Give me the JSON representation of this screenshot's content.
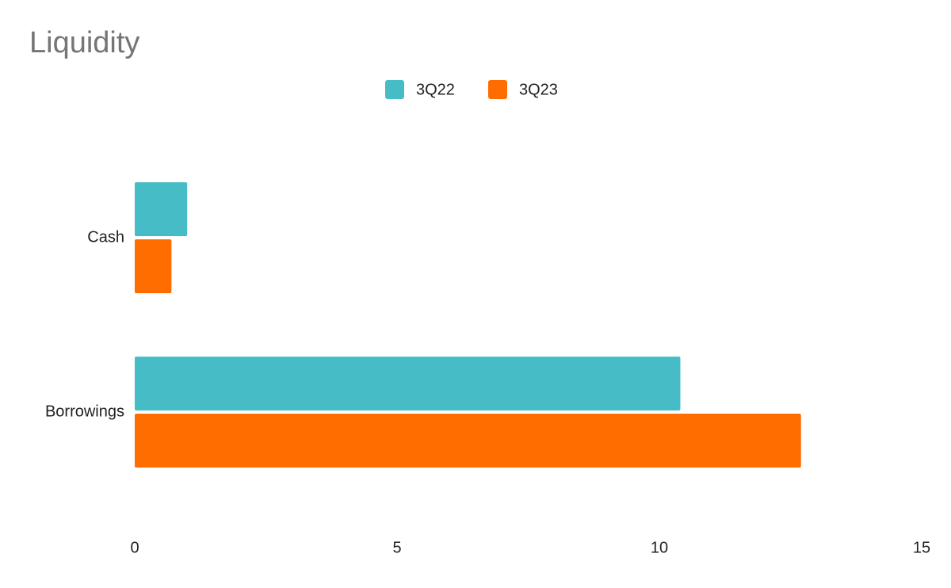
{
  "chart_data": {
    "type": "bar",
    "title": "Liquidity",
    "categories": [
      "Cash",
      "Borrowings"
    ],
    "series": [
      {
        "name": "3Q22",
        "color": "#46bdc6",
        "values": [
          1.0,
          10.4
        ]
      },
      {
        "name": "3Q23",
        "color": "#ff6d01",
        "values": [
          0.7,
          12.7
        ]
      }
    ],
    "xlim": [
      0,
      15
    ],
    "xticks": [
      0,
      5,
      10,
      15
    ]
  }
}
